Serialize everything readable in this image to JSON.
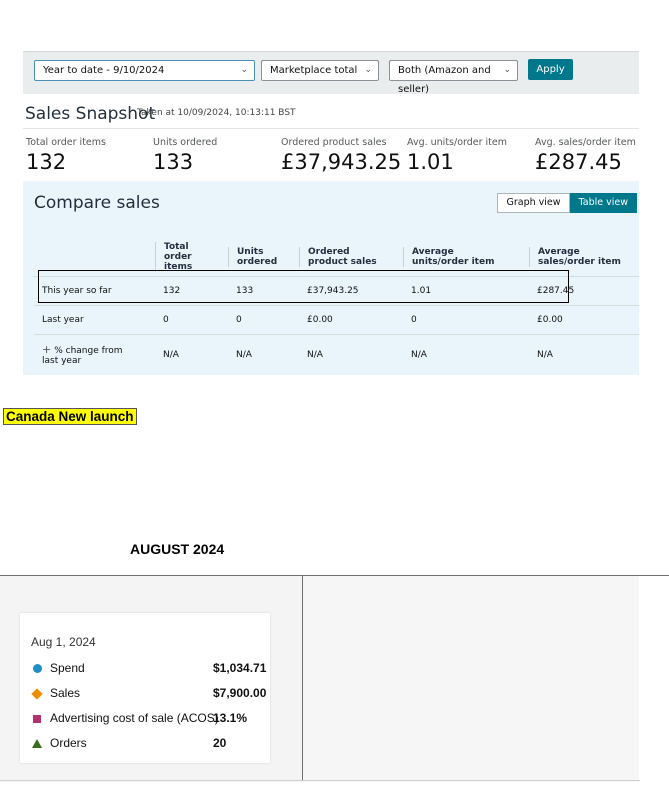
{
  "filters": {
    "date_range": "Year to date - 9/10/2024",
    "marketplace": "Marketplace total",
    "fulfillment": "Both (Amazon and seller)",
    "apply_label": "Apply"
  },
  "snapshot": {
    "title": "Sales Snapshot",
    "taken": "Taken at 10/09/2024, 10:13:11 BST",
    "metrics": [
      {
        "label": "Total order items",
        "value": "132"
      },
      {
        "label": "Units ordered",
        "value": "133"
      },
      {
        "label": "Ordered product sales",
        "value": "£37,943.25"
      },
      {
        "label": "Avg. units/order item",
        "value": "1.01"
      },
      {
        "label": "Avg. sales/order item",
        "value": "£287.45"
      }
    ]
  },
  "compare": {
    "title": "Compare sales",
    "graph_view": "Graph view",
    "table_view": "Table view",
    "headers": [
      "",
      "Total order items",
      "Units ordered",
      "Ordered product sales",
      "Average units/order item",
      "Average sales/order item"
    ],
    "rows": [
      [
        "This year so far",
        "132",
        "133",
        "£37,943.25",
        "1.01",
        "£287.45"
      ],
      [
        "Last year",
        "0",
        "0",
        "£0.00",
        "0",
        "£0.00"
      ],
      [
        "% change from last year",
        "N/A",
        "N/A",
        "N/A",
        "N/A",
        "N/A"
      ]
    ]
  },
  "canada_label": "Canada New launch",
  "august": {
    "heading": "AUGUST 2024",
    "tooltip": {
      "date": "Aug 1, 2024",
      "rows": [
        {
          "label": "Spend",
          "value": "$1,034.71",
          "marker": "circle",
          "color": "#1f8fc8"
        },
        {
          "label": "Sales",
          "value": "$7,900.00",
          "marker": "diamond",
          "color": "#f08c00"
        },
        {
          "label": "Advertising cost of sale (ACOS)",
          "value": "13.1%",
          "marker": "square",
          "color": "#b4316f"
        },
        {
          "label": "Orders",
          "value": "20",
          "marker": "triangle",
          "color": "#3b6b1c"
        }
      ]
    }
  }
}
